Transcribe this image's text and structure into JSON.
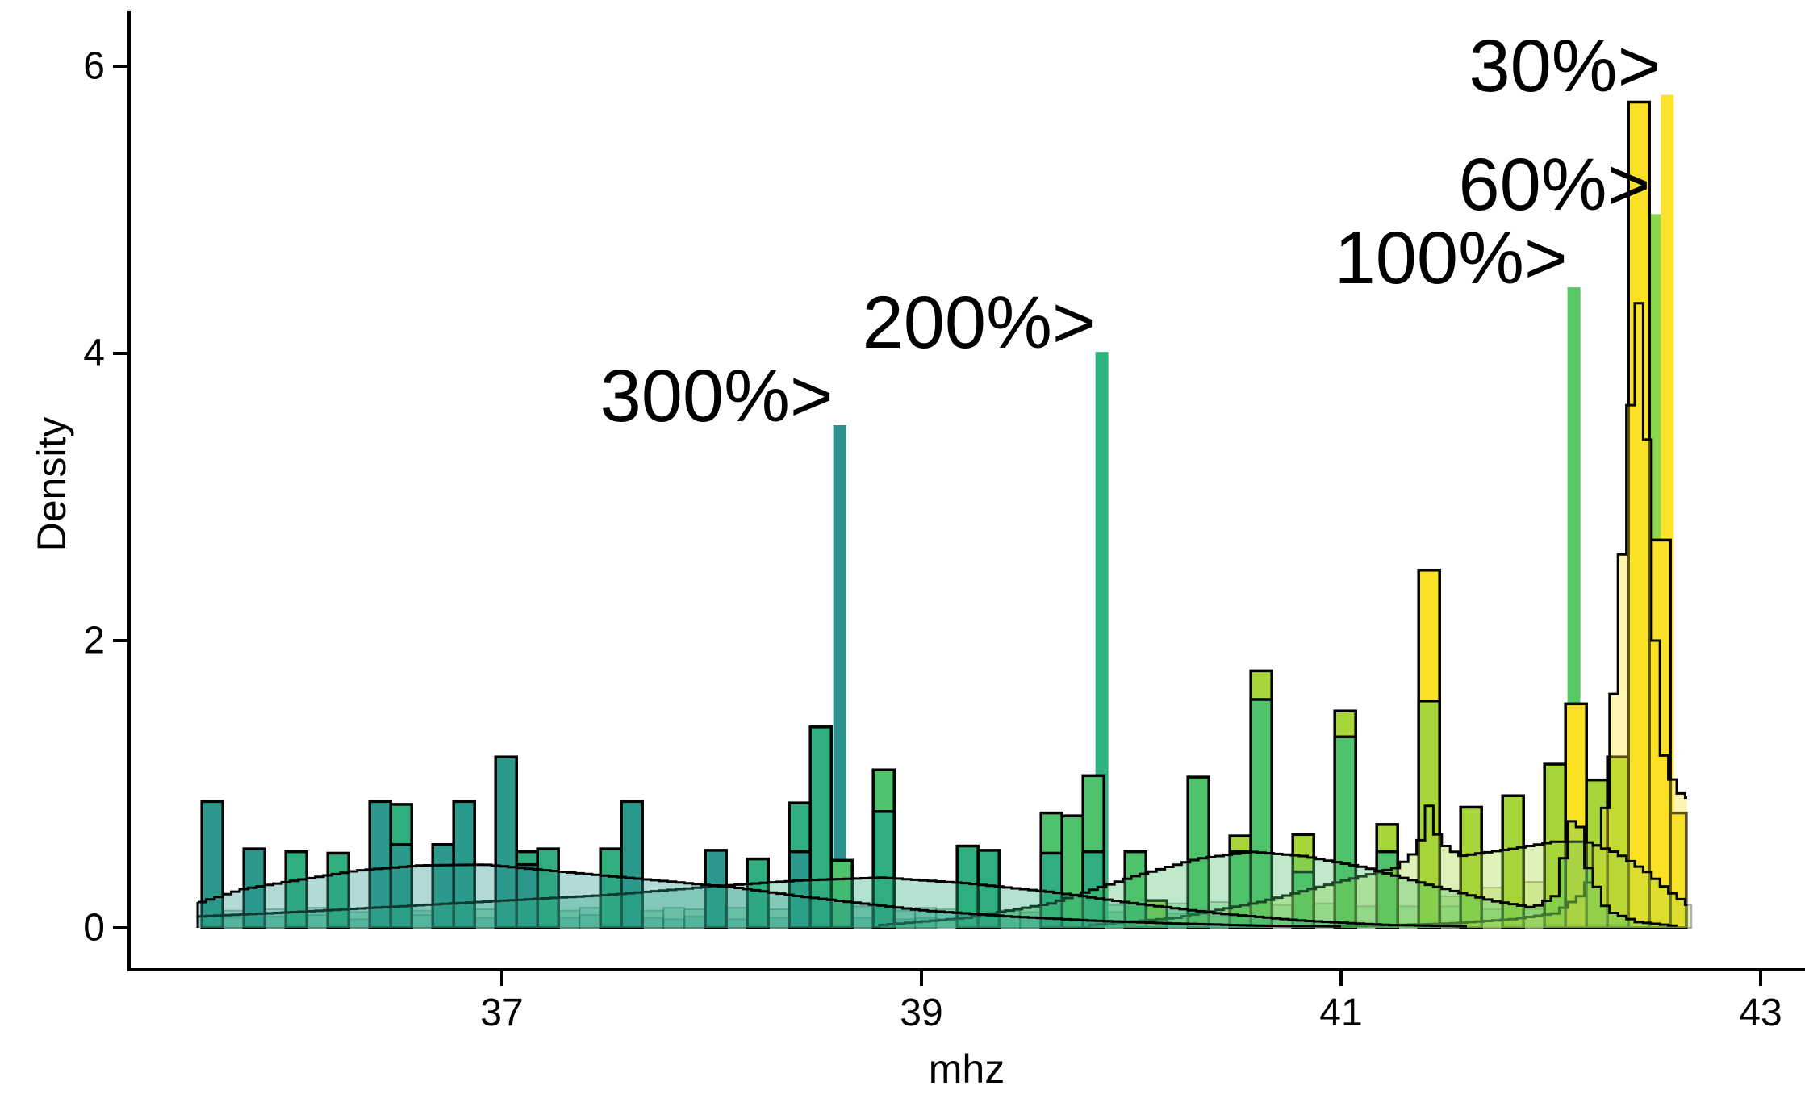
{
  "chart_data": {
    "type": "histogram+density",
    "title": "",
    "xlabel": "mhz",
    "ylabel": "Density",
    "x_ticks": [
      37,
      39,
      41,
      43
    ],
    "y_ticks": [
      0,
      2,
      4,
      6
    ],
    "xlim": [
      35.2,
      43.2
    ],
    "ylim": [
      0,
      6.3
    ],
    "grid": false,
    "legend": "none",
    "bin_width": 0.1,
    "groups": [
      {
        "id": 300,
        "label": "300%",
        "bar_color": "#2B9A8D",
        "spike_color": "#2C9191",
        "kde_fill_alpha": 0.36
      },
      {
        "id": 200,
        "label": "200%",
        "bar_color": "#2FAF7D",
        "spike_color": "#2EB37C",
        "kde_fill_alpha": 0.36
      },
      {
        "id": 100,
        "label": "100%",
        "bar_color": "#4EC36B",
        "spike_color": "#57C767",
        "kde_fill_alpha": 0.36
      },
      {
        "id": 60,
        "label": "60%",
        "bar_color": "#A7D63A",
        "spike_color": "#8BD64A",
        "kde_fill_alpha": 0.36
      },
      {
        "id": 30,
        "label": "30%",
        "bar_color": "#FAE126",
        "spike_color": "#FBE22B",
        "kde_fill_alpha": 0.36
      }
    ],
    "annotations": [
      {
        "text": "300%>",
        "group": 300,
        "mhz": 38.61,
        "density": 3.5
      },
      {
        "text": "200%>",
        "group": 200,
        "mhz": 39.86,
        "density": 4.01
      },
      {
        "text": "100%>",
        "group": 100,
        "mhz": 42.11,
        "density": 4.46
      },
      {
        "text": "60%>",
        "group": 60,
        "mhz": 42.505,
        "density": 4.97
      },
      {
        "text": "30%>",
        "group": 30,
        "mhz": 42.555,
        "density": 5.8
      }
    ],
    "spikes": [
      {
        "group": 300,
        "mhz": 38.61,
        "density": 3.5
      },
      {
        "group": 200,
        "mhz": 39.86,
        "density": 4.01
      },
      {
        "group": 100,
        "mhz": 42.11,
        "density": 4.46
      },
      {
        "group": 60,
        "mhz": 42.505,
        "density": 4.97
      },
      {
        "group": 30,
        "mhz": 42.555,
        "density": 5.8
      }
    ],
    "bars": [
      [
        35.57,
        0.88,
        300
      ],
      [
        35.77,
        0.55,
        300
      ],
      [
        35.97,
        0.53,
        200
      ],
      [
        36.17,
        0.52,
        200
      ],
      [
        36.37,
        0.88,
        300
      ],
      [
        36.47,
        0.86,
        200
      ],
      [
        36.47,
        0.58,
        300
      ],
      [
        36.67,
        0.58,
        300
      ],
      [
        36.77,
        0.88,
        300
      ],
      [
        36.97,
        1.19,
        300
      ],
      [
        37.07,
        0.53,
        200
      ],
      [
        37.07,
        0.44,
        300
      ],
      [
        37.17,
        0.55,
        200
      ],
      [
        37.47,
        0.55,
        200
      ],
      [
        37.57,
        0.88,
        300
      ],
      [
        37.97,
        0.54,
        300
      ],
      [
        38.17,
        0.48,
        200
      ],
      [
        38.37,
        0.87,
        200
      ],
      [
        38.37,
        0.53,
        300
      ],
      [
        38.47,
        1.4,
        200
      ],
      [
        38.57,
        0.47,
        100
      ],
      [
        38.77,
        1.1,
        100
      ],
      [
        38.77,
        0.81,
        200
      ],
      [
        39.17,
        0.57,
        200
      ],
      [
        39.27,
        0.54,
        200
      ],
      [
        39.57,
        0.8,
        100
      ],
      [
        39.57,
        0.52,
        200
      ],
      [
        39.67,
        0.78,
        100
      ],
      [
        39.77,
        1.06,
        100
      ],
      [
        39.77,
        0.53,
        200
      ],
      [
        39.97,
        0.53,
        100
      ],
      [
        40.07,
        0.19,
        60
      ],
      [
        40.27,
        1.05,
        100
      ],
      [
        40.47,
        0.64,
        60
      ],
      [
        40.47,
        0.53,
        100
      ],
      [
        40.57,
        1.79,
        60
      ],
      [
        40.57,
        1.59,
        100
      ],
      [
        40.77,
        0.65,
        60
      ],
      [
        40.77,
        0.39,
        100
      ],
      [
        40.97,
        1.51,
        60
      ],
      [
        40.97,
        1.33,
        100
      ],
      [
        41.17,
        0.72,
        60
      ],
      [
        41.17,
        0.53,
        100
      ],
      [
        41.37,
        2.49,
        30
      ],
      [
        41.37,
        1.58,
        60
      ],
      [
        41.57,
        0.84,
        60
      ],
      [
        41.77,
        0.92,
        60
      ],
      [
        41.97,
        1.14,
        60
      ],
      [
        42.07,
        1.56,
        30
      ],
      [
        42.17,
        1.03,
        60
      ],
      [
        42.27,
        1.19,
        60
      ],
      [
        42.37,
        5.75,
        30
      ],
      [
        42.47,
        2.7,
        30
      ],
      [
        42.57,
        0.8,
        30
      ]
    ],
    "ghost_bars": [
      {
        "group": 300,
        "start": 35.57,
        "step": 0.1,
        "heights": [
          0.05,
          0.07,
          0.06,
          0.08,
          0.06,
          0.09,
          0.07,
          0.06,
          0.08,
          0.07,
          0.09,
          0.06,
          0.08,
          0.07,
          0.06,
          0.08,
          0.06,
          0.07,
          0.09,
          0.06,
          0.08,
          0.07,
          0.06,
          0.08,
          0.07,
          0.06,
          0.09,
          0.07,
          0.06,
          0.08,
          0.06,
          0.07,
          0.08,
          0.06,
          0.07
        ]
      },
      {
        "group": 200,
        "start": 35.57,
        "step": 0.1,
        "heights": [
          0.1,
          0.12,
          0.11,
          0.13,
          0.12,
          0.14,
          0.12,
          0.11,
          0.13,
          0.14,
          0.12,
          0.13,
          0.15,
          0.13,
          0.12,
          0.14,
          0.13,
          0.12,
          0.14,
          0.15,
          0.13,
          0.12,
          0.14,
          0.13,
          0.15,
          0.14,
          0.12,
          0.13,
          0.14,
          0.12,
          0.13,
          0.15,
          0.13,
          0.12,
          0.14,
          0.13,
          0.12,
          0.13,
          0.12,
          0.11,
          0.12,
          0.11,
          0.1,
          0.11,
          0.1,
          0.09,
          0.1,
          0.09,
          0.08
        ]
      },
      {
        "group": 100,
        "start": 39.37,
        "step": 0.1,
        "heights": [
          0.12,
          0.14,
          0.13,
          0.15,
          0.27,
          0.16,
          0.19,
          0.15,
          0.17,
          0.16,
          0.18,
          0.15,
          0.17,
          0.16,
          0.15,
          0.17,
          0.16,
          0.15,
          0.16,
          0.15,
          0.14,
          0.15,
          0.14,
          0.13,
          0.14,
          0.13,
          0.12,
          0.13,
          0.12,
          0.11,
          0.12
        ]
      },
      {
        "group": 60,
        "start": 41.37,
        "step": 0.1,
        "heights": [
          0.18,
          0.22,
          0.25,
          0.28,
          0.3,
          0.32,
          0.3,
          0.28,
          0.26,
          0.24,
          0.22,
          0.2,
          0.16
        ]
      }
    ],
    "kde_curves": [
      {
        "group": 300,
        "points": [
          [
            35.55,
            0.18
          ],
          [
            35.75,
            0.27
          ],
          [
            36.0,
            0.33
          ],
          [
            36.3,
            0.4
          ],
          [
            36.6,
            0.435
          ],
          [
            36.9,
            0.44
          ],
          [
            37.2,
            0.4
          ],
          [
            37.5,
            0.36
          ],
          [
            37.8,
            0.32
          ],
          [
            38.1,
            0.28
          ],
          [
            38.4,
            0.22
          ],
          [
            38.7,
            0.17
          ],
          [
            39.0,
            0.12
          ],
          [
            39.4,
            0.08
          ],
          [
            39.8,
            0.05
          ],
          [
            40.2,
            0.03
          ],
          [
            40.6,
            0.015
          ],
          [
            41.0,
            0.01
          ]
        ]
      },
      {
        "group": 200,
        "points": [
          [
            35.55,
            0.08
          ],
          [
            36.0,
            0.11
          ],
          [
            36.5,
            0.15
          ],
          [
            37.0,
            0.19
          ],
          [
            37.5,
            0.23
          ],
          [
            38.0,
            0.29
          ],
          [
            38.4,
            0.33
          ],
          [
            38.8,
            0.35
          ],
          [
            39.2,
            0.31
          ],
          [
            39.6,
            0.25
          ],
          [
            40.0,
            0.17
          ],
          [
            40.4,
            0.1
          ],
          [
            40.8,
            0.05
          ],
          [
            41.2,
            0.02
          ],
          [
            41.6,
            0.01
          ]
        ]
      },
      {
        "group": 100,
        "points": [
          [
            38.8,
            0.02
          ],
          [
            39.2,
            0.07
          ],
          [
            39.6,
            0.17
          ],
          [
            40.0,
            0.36
          ],
          [
            40.3,
            0.48
          ],
          [
            40.55,
            0.53
          ],
          [
            40.8,
            0.5
          ],
          [
            41.1,
            0.42
          ],
          [
            41.4,
            0.3
          ],
          [
            41.7,
            0.19
          ],
          [
            41.9,
            0.14
          ],
          [
            42.0,
            0.22
          ],
          [
            42.05,
            0.55
          ],
          [
            42.1,
            0.87
          ],
          [
            42.15,
            0.45
          ],
          [
            42.25,
            0.12
          ],
          [
            42.4,
            0.04
          ],
          [
            42.6,
            0.01
          ]
        ]
      },
      {
        "group": 60,
        "points": [
          [
            39.8,
            0.02
          ],
          [
            40.2,
            0.07
          ],
          [
            40.6,
            0.18
          ],
          [
            41.0,
            0.33
          ],
          [
            41.25,
            0.42
          ],
          [
            41.35,
            0.55
          ],
          [
            41.4,
            0.85
          ],
          [
            41.45,
            0.6
          ],
          [
            41.55,
            0.5
          ],
          [
            41.8,
            0.55
          ],
          [
            42.0,
            0.6
          ],
          [
            42.15,
            0.6
          ],
          [
            42.3,
            0.52
          ],
          [
            42.45,
            0.38
          ],
          [
            42.55,
            0.25
          ],
          [
            42.65,
            0.15
          ]
        ]
      },
      {
        "group": 30,
        "points": [
          [
            41.0,
            0.01
          ],
          [
            41.5,
            0.03
          ],
          [
            41.8,
            0.06
          ],
          [
            42.0,
            0.1
          ],
          [
            42.15,
            0.25
          ],
          [
            42.25,
            0.9
          ],
          [
            42.32,
            2.6
          ],
          [
            42.37,
            3.9
          ],
          [
            42.4,
            4.35
          ],
          [
            42.44,
            3.4
          ],
          [
            42.48,
            2.0
          ],
          [
            42.52,
            1.2
          ],
          [
            42.58,
            0.95
          ],
          [
            42.65,
            0.9
          ]
        ]
      }
    ]
  }
}
